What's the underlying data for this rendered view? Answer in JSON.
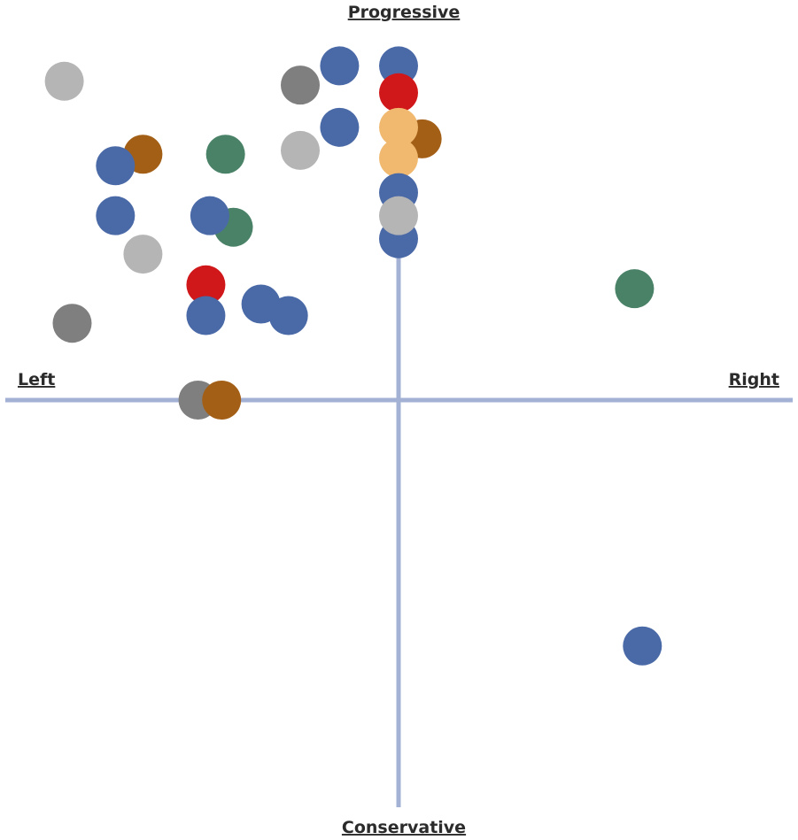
{
  "chart_data": {
    "type": "scatter",
    "title": "",
    "axis_labels": {
      "top": "Progressive",
      "bottom": "Conservative",
      "left": "Left",
      "right": "Right"
    },
    "xlim": [
      -10,
      10
    ],
    "ylim": [
      -10,
      10
    ],
    "grid": false,
    "legend": "none",
    "colors": {
      "axis": "#a3b1d4",
      "blue": "#4a69a7",
      "red": "#d0171a",
      "orange": "#a35f16",
      "peach": "#f0b96f",
      "green": "#4a8268",
      "dark_gray": "#7f7f7f",
      "light_gray": "#b5b5b5"
    },
    "points": [
      {
        "x": -8.5,
        "y": 8.3,
        "color": "light_gray"
      },
      {
        "x": -6.5,
        "y": 6.4,
        "color": "orange"
      },
      {
        "x": -7.2,
        "y": 6.1,
        "color": "blue"
      },
      {
        "x": -4.4,
        "y": 6.4,
        "color": "green"
      },
      {
        "x": -7.2,
        "y": 4.8,
        "color": "blue"
      },
      {
        "x": -6.5,
        "y": 3.8,
        "color": "light_gray"
      },
      {
        "x": -4.2,
        "y": 4.5,
        "color": "green"
      },
      {
        "x": -4.8,
        "y": 4.8,
        "color": "blue"
      },
      {
        "x": -4.9,
        "y": 3.0,
        "color": "red"
      },
      {
        "x": -4.9,
        "y": 2.2,
        "color": "blue"
      },
      {
        "x": -8.3,
        "y": 2.0,
        "color": "dark_gray"
      },
      {
        "x": -3.5,
        "y": 2.5,
        "color": "blue"
      },
      {
        "x": -2.8,
        "y": 2.2,
        "color": "blue"
      },
      {
        "x": -2.5,
        "y": 8.2,
        "color": "dark_gray"
      },
      {
        "x": -1.5,
        "y": 8.7,
        "color": "blue"
      },
      {
        "x": -2.5,
        "y": 6.5,
        "color": "light_gray"
      },
      {
        "x": -1.5,
        "y": 7.1,
        "color": "blue"
      },
      {
        "x": 0.0,
        "y": 8.7,
        "color": "blue"
      },
      {
        "x": 0.0,
        "y": 8.0,
        "color": "red"
      },
      {
        "x": 0.6,
        "y": 6.8,
        "color": "orange"
      },
      {
        "x": 0.0,
        "y": 7.1,
        "color": "peach"
      },
      {
        "x": 0.0,
        "y": 6.3,
        "color": "peach"
      },
      {
        "x": 0.0,
        "y": 5.4,
        "color": "blue"
      },
      {
        "x": 0.0,
        "y": 4.2,
        "color": "blue"
      },
      {
        "x": 0.0,
        "y": 4.8,
        "color": "light_gray"
      },
      {
        "x": -5.1,
        "y": 0.0,
        "color": "dark_gray"
      },
      {
        "x": -4.5,
        "y": 0.0,
        "color": "orange"
      },
      {
        "x": 6.0,
        "y": 2.9,
        "color": "green"
      },
      {
        "x": 6.2,
        "y": -6.4,
        "color": "blue"
      }
    ]
  }
}
